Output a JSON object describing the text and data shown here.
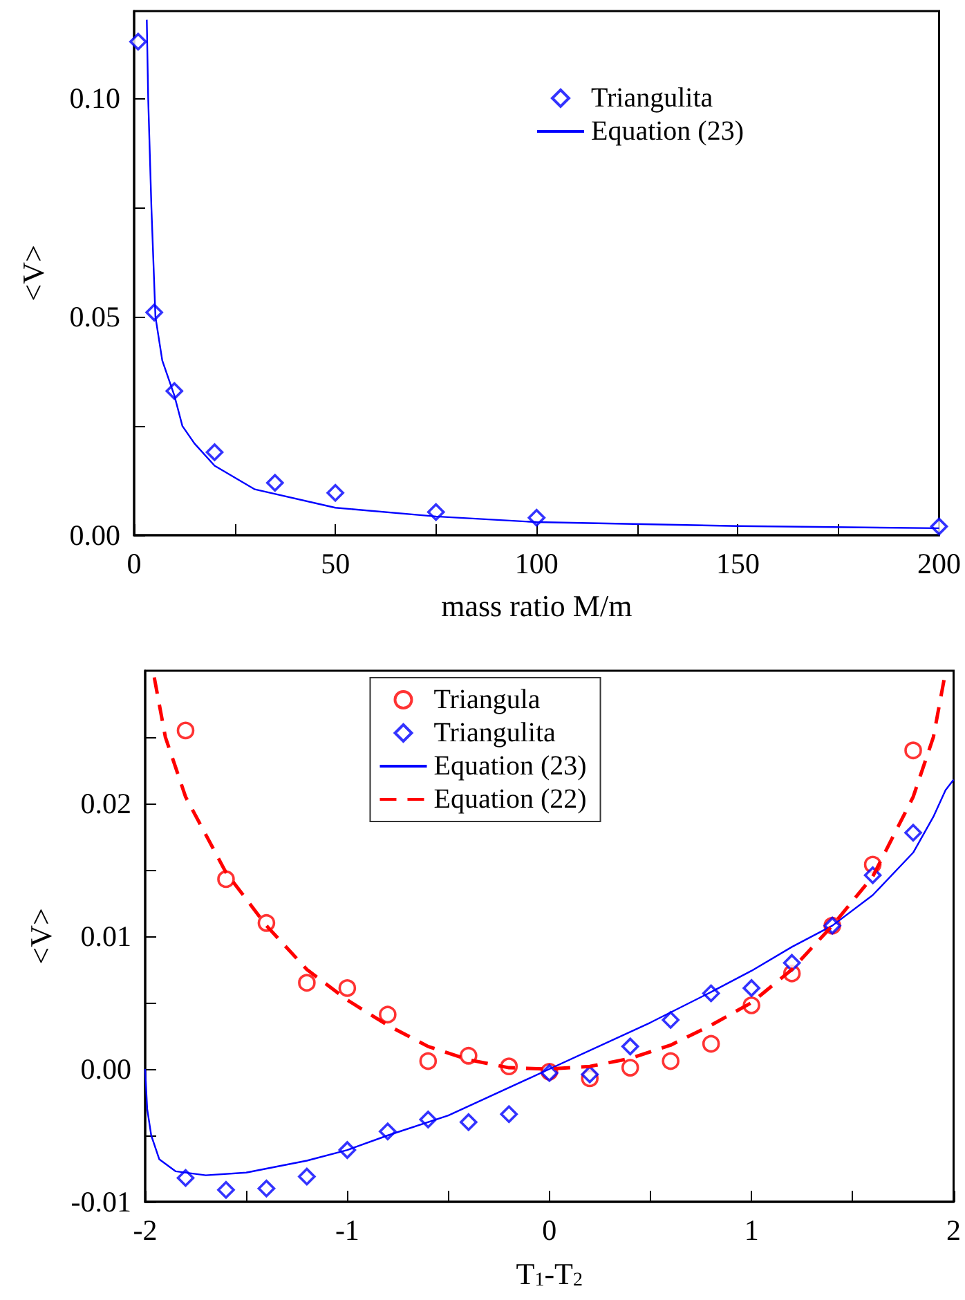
{
  "chart_data": [
    {
      "type": "scatter",
      "xlabel": "mass ratio M/m",
      "ylabel": "<V>",
      "xlim": [
        0,
        200
      ],
      "ylim": [
        0,
        0.12
      ],
      "xticks": [
        0,
        {
          "value": 25,
          "label": null
        },
        50,
        {
          "value": 75,
          "label": null
        },
        100,
        {
          "value": 125,
          "label": null
        },
        150,
        {
          "value": 175,
          "label": null
        },
        200
      ],
      "yticks": [
        {
          "value": 0,
          "label": "0.00"
        },
        {
          "value": 0.025,
          "label": null
        },
        {
          "value": 0.05,
          "label": "0.05"
        },
        {
          "value": 0.075,
          "label": null
        },
        {
          "value": 0.1,
          "label": "0.10"
        }
      ],
      "grid": false,
      "legend": "top right",
      "series": [
        {
          "name": "Triangulita",
          "type": "scatter",
          "marker": "diamond",
          "color": "#0000ff",
          "x": [
            1,
            5,
            10,
            20,
            35,
            50,
            75,
            100,
            200
          ],
          "values": [
            0.113,
            0.051,
            0.033,
            0.019,
            0.012,
            0.0097,
            0.0053,
            0.004,
            0.002
          ]
        },
        {
          "name": "Equation (23)",
          "type": "line",
          "marker": "none",
          "line_style": "solid",
          "color": "#0000ff",
          "x": [
            3.15,
            3.5,
            4.3,
            5.3,
            7,
            10,
            12,
            15,
            20,
            30,
            50,
            75,
            100,
            150,
            200
          ],
          "values": [
            0.118,
            0.1,
            0.075,
            0.05,
            0.04,
            0.032,
            0.025,
            0.021,
            0.0159,
            0.0105,
            0.0063,
            0.0043,
            0.003,
            0.0021,
            0.0016
          ]
        }
      ]
    },
    {
      "type": "scatter",
      "xlabel": "T$_{1}$-T$_{2}$",
      "ylabel": "<V>",
      "xlim": [
        -2,
        2
      ],
      "ylim": [
        -0.01,
        0.03
      ],
      "xticks": [
        -2,
        {
          "value": -1.5,
          "label": null
        },
        -1,
        {
          "value": -0.5,
          "label": null
        },
        0,
        {
          "value": 0.5,
          "label": null
        },
        1,
        {
          "value": 1.5,
          "label": null
        },
        2
      ],
      "yticks": [
        {
          "value": -0.01,
          "label": "-0.01"
        },
        {
          "value": -0.005,
          "label": null
        },
        {
          "value": 0,
          "label": "0.00"
        },
        {
          "value": 0.005,
          "label": null
        },
        {
          "value": 0.01,
          "label": "0.01"
        },
        {
          "value": 0.015,
          "label": null
        },
        {
          "value": 0.02,
          "label": "0.02"
        },
        {
          "value": 0.025,
          "label": null
        }
      ],
      "grid": false,
      "legend": "top",
      "series": [
        {
          "name": "Triangula",
          "type": "scatter",
          "marker": "circle",
          "color": "#ff0000",
          "x": [
            -1.8,
            -1.6,
            -1.4,
            -1.2,
            -1.0,
            -0.8,
            -0.6,
            -0.4,
            -0.2,
            0,
            0.2,
            0.4,
            0.6,
            0.8,
            1.0,
            1.2,
            1.4,
            1.6,
            1.8
          ],
          "values": [
            0.0255,
            0.0143,
            0.011,
            0.0065,
            0.0061,
            0.0041,
            0.0006,
            0.001,
            0.0002,
            -0.0002,
            -0.0007,
            0.0001,
            0.0006,
            0.0019,
            0.0048,
            0.0072,
            0.0108,
            0.0154,
            0.024
          ]
        },
        {
          "name": "Triangulita",
          "type": "scatter",
          "marker": "diamond",
          "color": "#0000ff",
          "x": [
            -1.8,
            -1.6,
            -1.4,
            -1.2,
            -1.0,
            -0.8,
            -0.6,
            -0.4,
            -0.2,
            0,
            0.2,
            0.4,
            0.6,
            0.8,
            1.0,
            1.2,
            1.4,
            1.6,
            1.8
          ],
          "values": [
            -0.0082,
            -0.0091,
            -0.009,
            -0.0081,
            -0.0061,
            -0.0047,
            -0.0038,
            -0.004,
            -0.0034,
            -0.0003,
            -0.0004,
            0.0017,
            0.0037,
            0.0057,
            0.0061,
            0.008,
            0.0108,
            0.0146,
            0.0178
          ]
        },
        {
          "name": "Equation (23)",
          "type": "line",
          "marker": "none",
          "line_style": "solid",
          "color": "#0000ff",
          "x": [
            -2,
            -1.99,
            -1.97,
            -1.93,
            -1.85,
            -1.7,
            -1.5,
            -1.2,
            -1,
            -0.8,
            -0.5,
            0,
            0.5,
            0.8,
            1,
            1.2,
            1.4,
            1.6,
            1.8,
            1.9,
            1.96,
            2
          ],
          "values": [
            0,
            -0.003,
            -0.005,
            -0.0068,
            -0.0077,
            -0.008,
            -0.0078,
            -0.0069,
            -0.0061,
            -0.005,
            -0.0035,
            0,
            0.0035,
            0.0058,
            0.0074,
            0.0092,
            0.0108,
            0.0131,
            0.0163,
            0.019,
            0.021,
            0.0218
          ]
        },
        {
          "name": "Equation (22)",
          "type": "line",
          "marker": "none",
          "line_style": "dashed",
          "color": "#ff0000",
          "x": [
            -1.955,
            -1.9,
            -1.8,
            -1.6,
            -1.4,
            -1.2,
            -1,
            -0.8,
            -0.6,
            -0.4,
            -0.2,
            0,
            0.2,
            0.4,
            0.6,
            0.8,
            1,
            1.2,
            1.4,
            1.6,
            1.8,
            1.9,
            1.955
          ],
          "values": [
            0.0295,
            0.025,
            0.0205,
            0.0148,
            0.0108,
            0.0075,
            0.0052,
            0.0033,
            0.0017,
            0.0007,
            0.0001,
            0,
            0.0002,
            0.0008,
            0.0018,
            0.0033,
            0.005,
            0.0075,
            0.0108,
            0.0145,
            0.0205,
            0.025,
            0.0295
          ]
        }
      ]
    }
  ]
}
